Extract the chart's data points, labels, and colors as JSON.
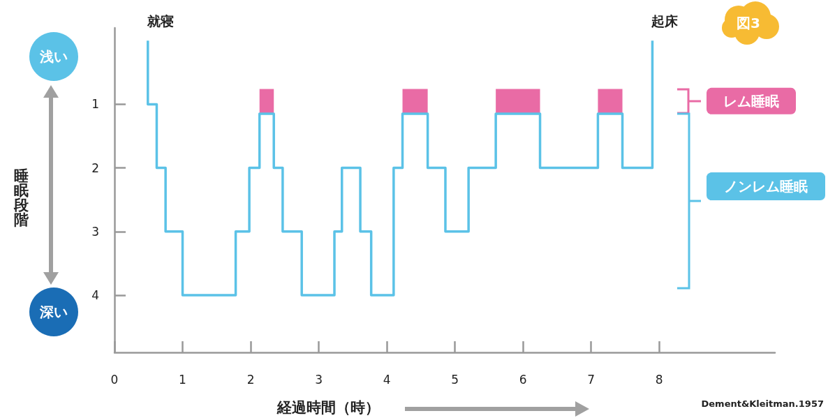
{
  "chart_data": {
    "type": "step",
    "xlabel": "経過時間（時）",
    "ylabel": "睡眠段階",
    "x": [
      0.49,
      0.49,
      0.62,
      0.75,
      1.0,
      1.78,
      1.98,
      2.13,
      2.34,
      2.47,
      2.75,
      3.23,
      3.34,
      3.61,
      3.77,
      4.1,
      4.23,
      4.6,
      4.86,
      5.2,
      5.6,
      6.25,
      7.1,
      7.46,
      7.9
    ],
    "series": [
      {
        "color": "#5bc2e7",
        "values": [
          0,
          1,
          2,
          3,
          4,
          3,
          2,
          1.15,
          2,
          3,
          4,
          3,
          2,
          3,
          4,
          2,
          1.15,
          2,
          3,
          2,
          1.15,
          2,
          1.15,
          2,
          0
        ]
      }
    ],
    "xlim": [
      0,
      9.7
    ],
    "xticks": [
      0,
      1,
      2,
      3,
      4,
      5,
      6,
      7,
      8
    ],
    "ylim": [
      4.9,
      -0.2
    ],
    "yticks": [
      1,
      2,
      3,
      4
    ],
    "bands": [
      {
        "axis": "x",
        "from": 2.13,
        "to": 2.34,
        "color": "#e96ba5"
      },
      {
        "axis": "x",
        "from": 4.23,
        "to": 4.6,
        "color": "#e96ba5"
      },
      {
        "axis": "x",
        "from": 5.6,
        "to": 6.25,
        "color": "#e96ba5"
      },
      {
        "axis": "x",
        "from": 7.1,
        "to": 7.46,
        "color": "#e96ba5"
      }
    ],
    "annotations": [
      {
        "text": "就寝",
        "x": 0.49,
        "y": 0
      },
      {
        "text": "起床",
        "x": 7.9,
        "y": 0
      },
      "浅い",
      "深い",
      "図3",
      "レム睡眠",
      "ノンレム睡眠",
      "Dement&Kleitman.1957"
    ],
    "grid": false,
    "marker": "none",
    "line_style": "solid"
  }
}
